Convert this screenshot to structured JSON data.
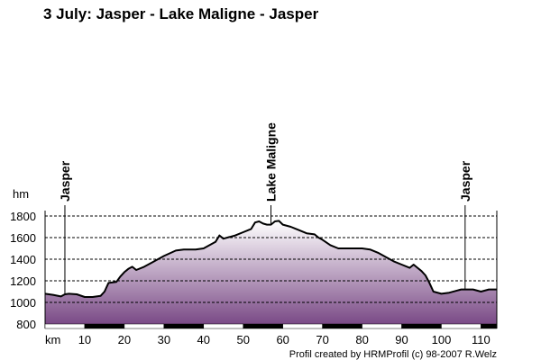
{
  "chart_data": {
    "type": "area",
    "title": "3 July: Jasper - Lake Maligne - Jasper",
    "ylabel": "hm",
    "xlabel": "km",
    "xlim": [
      0,
      114
    ],
    "ylim": [
      800,
      1800
    ],
    "x_ticks": [
      10,
      20,
      30,
      40,
      50,
      60,
      70,
      80,
      90,
      100,
      110
    ],
    "y_ticks": [
      800,
      1000,
      1200,
      1400,
      1600,
      1800
    ],
    "grid": true,
    "credit": "Profil created by HRMProfil (c) 98-2007 R.Welz",
    "line_color": "#000000",
    "fill_color_top": "#ffffff",
    "fill_color_bottom": "#7a4a86",
    "markers": [
      {
        "label": "Jasper",
        "x": 5
      },
      {
        "label": "Lake Maligne",
        "x": 57
      },
      {
        "label": "Jasper",
        "x": 106
      }
    ],
    "series": [
      {
        "x": [
          0,
          2,
          4,
          5,
          6,
          8,
          10,
          12,
          14,
          15,
          16,
          18,
          19,
          20,
          21,
          22,
          23,
          25,
          27,
          30,
          33,
          35,
          38,
          40,
          43,
          44,
          45,
          48,
          50,
          52,
          53,
          54,
          55,
          56,
          57,
          58,
          59,
          60,
          62,
          64,
          66,
          68,
          69,
          70,
          72,
          74,
          76,
          78,
          80,
          82,
          84,
          86,
          88,
          90,
          92,
          93,
          94,
          95,
          96,
          97,
          98,
          100,
          102,
          104,
          105,
          106,
          108,
          110,
          112,
          114
        ],
        "y": [
          1080,
          1070,
          1055,
          1075,
          1080,
          1075,
          1050,
          1050,
          1060,
          1100,
          1180,
          1190,
          1240,
          1280,
          1310,
          1330,
          1300,
          1330,
          1370,
          1430,
          1480,
          1490,
          1490,
          1500,
          1560,
          1620,
          1590,
          1620,
          1650,
          1680,
          1740,
          1750,
          1730,
          1720,
          1720,
          1750,
          1755,
          1720,
          1700,
          1670,
          1640,
          1630,
          1600,
          1580,
          1530,
          1500,
          1500,
          1500,
          1500,
          1490,
          1460,
          1420,
          1380,
          1350,
          1320,
          1350,
          1320,
          1290,
          1250,
          1180,
          1100,
          1080,
          1090,
          1110,
          1120,
          1120,
          1120,
          1100,
          1120,
          1120
        ]
      }
    ]
  }
}
